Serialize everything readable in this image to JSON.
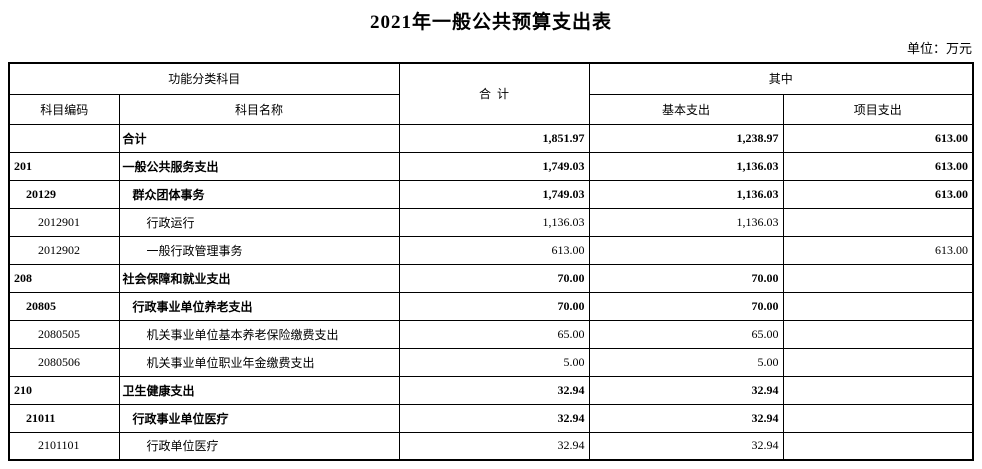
{
  "title": "2021年一般公共预算支出表",
  "unit_note": "单位：万元",
  "table": {
    "headers": {
      "func_group": "功能分类科目",
      "code": "科目编码",
      "name": "科目名称",
      "total": "合  计",
      "of_which": "其中",
      "basic": "基本支出",
      "project": "项目支出"
    },
    "rows": [
      {
        "code": "",
        "name": "合计",
        "total": "1,851.97",
        "basic": "1,238.97",
        "project": "613.00",
        "bold": true,
        "level": 1
      },
      {
        "code": "201",
        "name": "一般公共服务支出",
        "total": "1,749.03",
        "basic": "1,136.03",
        "project": "613.00",
        "bold": true,
        "level": 1
      },
      {
        "code": "20129",
        "name": "群众团体事务",
        "total": "1,749.03",
        "basic": "1,136.03",
        "project": "613.00",
        "bold": true,
        "level": 2
      },
      {
        "code": "2012901",
        "name": "行政运行",
        "total": "1,136.03",
        "basic": "1,136.03",
        "project": "",
        "bold": false,
        "level": 3
      },
      {
        "code": "2012902",
        "name": "一般行政管理事务",
        "total": "613.00",
        "basic": "",
        "project": "613.00",
        "bold": false,
        "level": 3
      },
      {
        "code": "208",
        "name": "社会保障和就业支出",
        "total": "70.00",
        "basic": "70.00",
        "project": "",
        "bold": true,
        "level": 1
      },
      {
        "code": "20805",
        "name": "行政事业单位养老支出",
        "total": "70.00",
        "basic": "70.00",
        "project": "",
        "bold": true,
        "level": 2
      },
      {
        "code": "2080505",
        "name": "机关事业单位基本养老保险缴费支出",
        "total": "65.00",
        "basic": "65.00",
        "project": "",
        "bold": false,
        "level": 3
      },
      {
        "code": "2080506",
        "name": "机关事业单位职业年金缴费支出",
        "total": "5.00",
        "basic": "5.00",
        "project": "",
        "bold": false,
        "level": 3
      },
      {
        "code": "210",
        "name": "卫生健康支出",
        "total": "32.94",
        "basic": "32.94",
        "project": "",
        "bold": true,
        "level": 1
      },
      {
        "code": "21011",
        "name": "行政事业单位医疗",
        "total": "32.94",
        "basic": "32.94",
        "project": "",
        "bold": true,
        "level": 2
      },
      {
        "code": "2101101",
        "name": "行政单位医疗",
        "total": "32.94",
        "basic": "32.94",
        "project": "",
        "bold": false,
        "level": 3
      }
    ]
  }
}
